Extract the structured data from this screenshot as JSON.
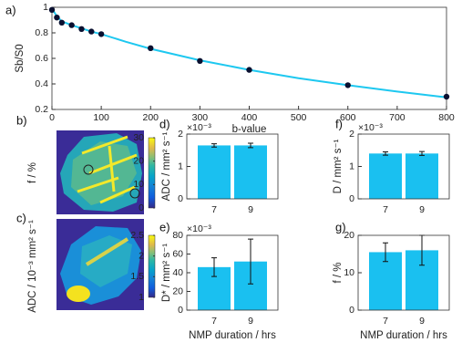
{
  "chart_data": [
    {
      "type": "line",
      "label": "a)",
      "x_label": "b-value",
      "y_label": "Sb/S0",
      "xlim": [
        0,
        800
      ],
      "xticks": [
        0,
        100,
        200,
        300,
        400,
        500,
        600,
        700,
        800
      ],
      "ylim": [
        0.2,
        1
      ],
      "yticks": [
        0.2,
        0.4,
        0.6,
        0.8,
        1
      ],
      "series": [
        {
          "color": "#1ec8f0",
          "marker": false,
          "x": [
            0,
            10,
            20,
            40,
            60,
            80,
            100,
            150,
            200,
            300,
            400,
            500,
            600,
            700,
            800
          ],
          "values": [
            0.99,
            0.93,
            0.89,
            0.86,
            0.835,
            0.81,
            0.79,
            0.73,
            0.675,
            0.585,
            0.51,
            0.445,
            0.39,
            0.34,
            0.295
          ]
        },
        {
          "color": "#0a1030",
          "marker": true,
          "x": [
            0,
            10,
            20,
            40,
            60,
            80,
            100,
            200,
            300,
            400,
            600,
            800
          ],
          "values": [
            0.98,
            0.92,
            0.88,
            0.86,
            0.83,
            0.81,
            0.79,
            0.68,
            0.58,
            0.51,
            0.39,
            0.3
          ]
        }
      ]
    },
    {
      "type": "image",
      "label": "b)",
      "clabel": "f / %",
      "clim": [
        0,
        30
      ],
      "cticks": [
        0,
        10,
        20,
        30
      ]
    },
    {
      "type": "image",
      "label": "c)",
      "clabel": "ADC / 10⁻³ mm² s⁻¹",
      "clim": [
        1,
        2.5
      ],
      "cticks": [
        1,
        1.5,
        2,
        2.5
      ]
    },
    {
      "type": "bar",
      "label": "d)",
      "y_label": "ADC / mm² s⁻¹",
      "multiplier": "×10⁻³",
      "color": "#1ac0f0",
      "categories": [
        "7",
        "9"
      ],
      "values": [
        1.65,
        1.65
      ],
      "errors": [
        0.05,
        0.07
      ],
      "ylim": [
        0,
        2
      ],
      "yticks": [
        0,
        1,
        2
      ]
    },
    {
      "type": "bar",
      "label": "e)",
      "y_label": "D* / mm² s⁻¹",
      "multiplier": "×10⁻³",
      "x_label": "NMP duration / hrs",
      "color": "#1ac0f0",
      "categories": [
        "7",
        "9"
      ],
      "values": [
        46,
        52
      ],
      "errors": [
        10,
        24
      ],
      "ylim": [
        0,
        80
      ],
      "yticks": [
        0,
        20,
        40,
        60,
        80
      ]
    },
    {
      "type": "bar",
      "label": "f)",
      "y_label": "D / mm² s⁻¹",
      "multiplier": "×10⁻³",
      "color": "#1ac0f0",
      "categories": [
        "7",
        "9"
      ],
      "values": [
        1.4,
        1.4
      ],
      "errors": [
        0.05,
        0.06
      ],
      "ylim": [
        0,
        2
      ],
      "yticks": [
        0,
        1,
        2
      ]
    },
    {
      "type": "bar",
      "label": "g)",
      "y_label": "f / %",
      "x_label": "NMP duration / hrs",
      "color": "#1ac0f0",
      "categories": [
        "7",
        "9"
      ],
      "values": [
        15.5,
        16
      ],
      "errors": [
        2.5,
        4
      ],
      "ylim": [
        0,
        20
      ],
      "yticks": [
        0,
        10,
        20
      ]
    }
  ]
}
